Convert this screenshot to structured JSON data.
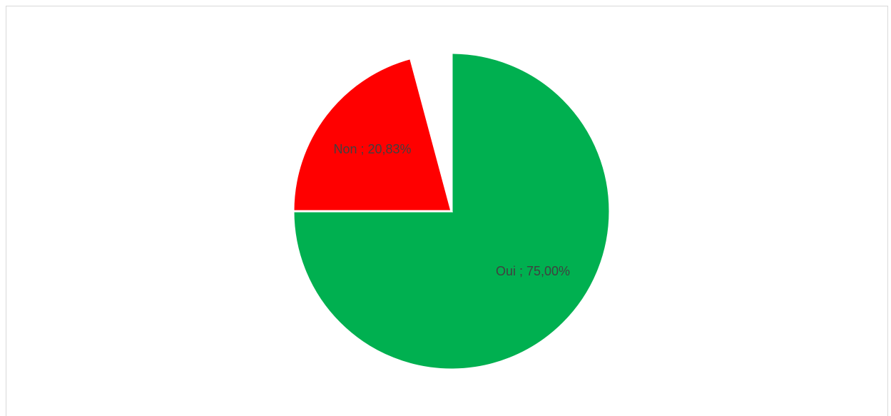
{
  "chart_data": {
    "type": "pie",
    "title": "",
    "slices": [
      {
        "label": "Oui",
        "value": 75.0,
        "display": "Oui ; 75,00%",
        "color": "#00b050"
      },
      {
        "label": "Non",
        "value": 20.83,
        "display": "Non ; 20,83%",
        "color": "#ff0000"
      }
    ],
    "start_angle_deg": 0,
    "direction": "clockwise",
    "slice_border_color": "#ffffff",
    "legend": "none"
  }
}
